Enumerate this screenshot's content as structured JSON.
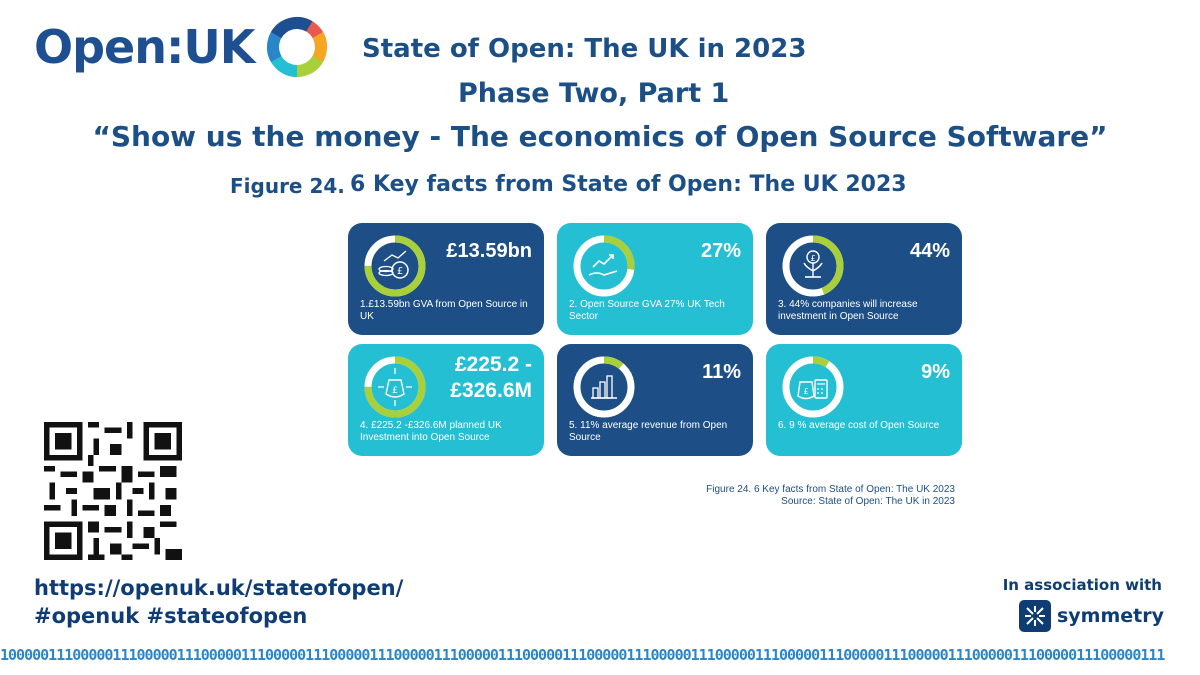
{
  "brand": {
    "logo_text": "Open:UK",
    "colors": {
      "navy": "#1d4f86",
      "teal": "#25bfd3",
      "lime": "#a9cf3b",
      "text": "#1b4f86"
    }
  },
  "header": {
    "line1": "State of Open: The UK in 2023",
    "line2": "Phase Two, Part 1",
    "line3": "“Show us the money - The economics of Open Source Software”"
  },
  "figure": {
    "number": "Figure 24.",
    "title": "6 Key facts from State of Open: The UK 2023"
  },
  "cards": [
    {
      "value": "£13.59bn",
      "desc": "1.£13.59bn GVA from Open Source in UK",
      "icon": "coins-pound-icon",
      "fill": 0.75,
      "theme": "dark"
    },
    {
      "value": "27%",
      "desc": "2. Open Source GVA 27% UK Tech Sector",
      "icon": "growth-hand-icon",
      "fill": 0.27,
      "theme": "light"
    },
    {
      "value": "44%",
      "desc": "3. 44% companies will increase investment in Open Source",
      "icon": "money-plant-icon",
      "fill": 0.44,
      "theme": "dark"
    },
    {
      "value_line1": "£225.2 -",
      "value_line2": "£326.6M",
      "desc": "4. £225.2 -£326.6M planned UK Investment into Open Source",
      "icon": "money-bag-arrows-icon",
      "fill": 0.75,
      "theme": "light"
    },
    {
      "value": "11%",
      "desc": "5. 11% average revenue from Open Source",
      "icon": "bar-chart-icon",
      "fill": 0.11,
      "theme": "dark"
    },
    {
      "value": "9%",
      "desc": "6. 9 % average cost of Open Source",
      "icon": "calculator-bag-icon",
      "fill": 0.09,
      "theme": "light"
    }
  ],
  "caption": {
    "line1": "Figure 24. 6 Key facts from State of Open: The UK 2023",
    "line2": "Source: State of Open: The UK in 2023"
  },
  "footer": {
    "url": "https://openuk.uk/stateofopen/",
    "hashtags": "#openuk #stateofopen",
    "association_label": "In association with",
    "partner": "symmetry"
  },
  "binary_strip": "1000001110000011100000111000001110000011100000111000001110000011100000111000001110000011100000111000001110000011100000111000001110000011100000111"
}
